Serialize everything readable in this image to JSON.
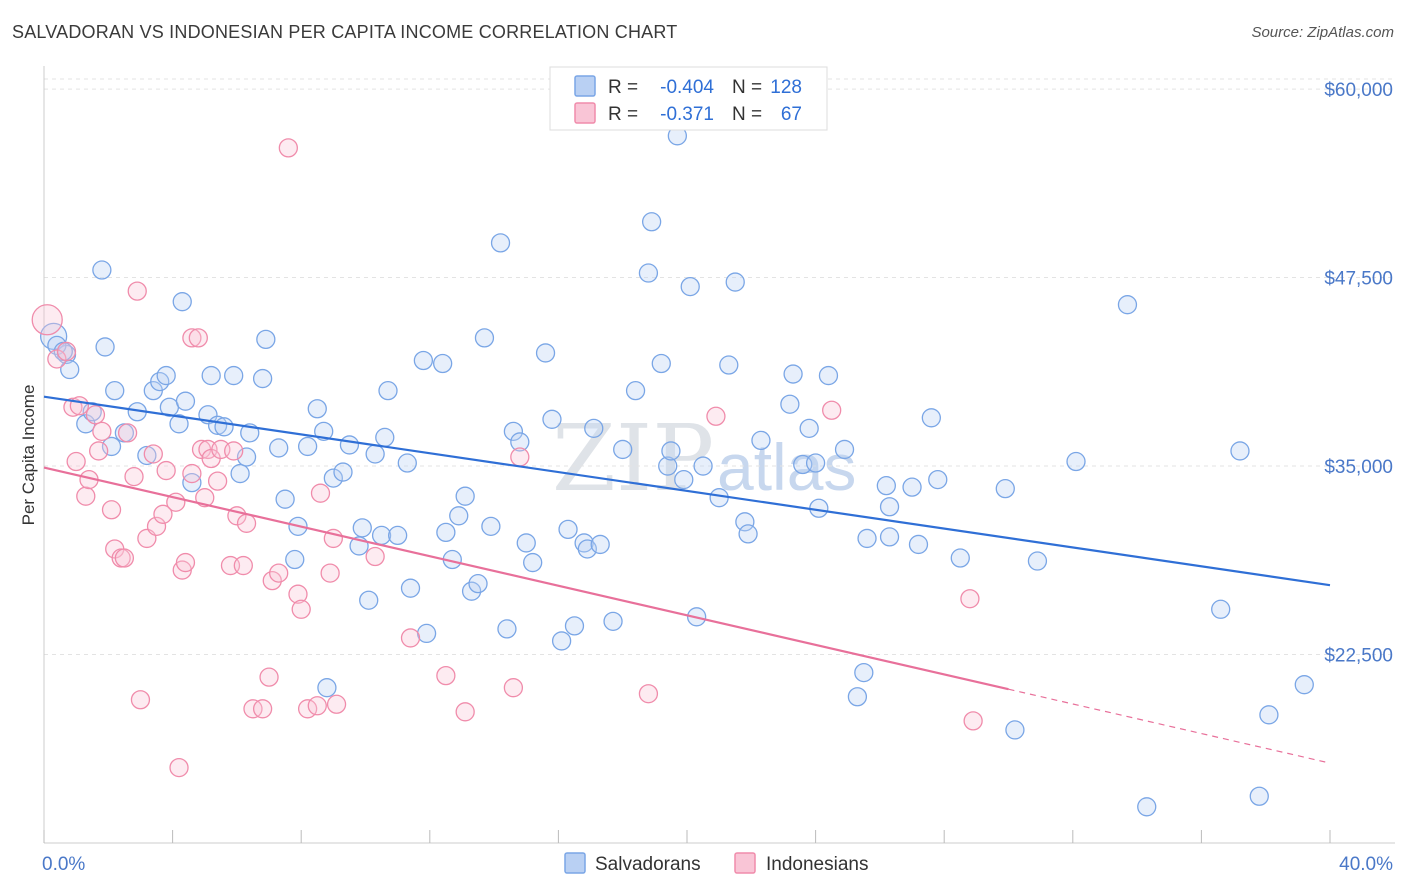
{
  "title": "SALVADORAN VS INDONESIAN PER CAPITA INCOME CORRELATION CHART",
  "source": "Source: ZipAtlas.com",
  "colors": {
    "salvadoran": "#7aa6e6",
    "indonesian": "#f08cab",
    "blue_line": "#2f6fd6",
    "pink_line": "#e8709a",
    "tick_text": "#4a78c8"
  },
  "legend": {
    "rows": [
      {
        "r_label": "R =",
        "r_value": "-0.404",
        "n_label": "N =",
        "n_value": "128"
      },
      {
        "r_label": "R =",
        "r_value": "-0.371",
        "n_label": "N =",
        "n_value": "67"
      }
    ]
  },
  "bottom_legend": [
    "Salvadorans",
    "Indonesians"
  ],
  "watermark": {
    "zip": "ZIP",
    "atlas": "atlas"
  },
  "chart_data": {
    "type": "scatter",
    "title": "SALVADORAN VS INDONESIAN PER CAPITA INCOME CORRELATION CHART",
    "xlabel": "",
    "ylabel": "Per Capita Income",
    "xlim": [
      0,
      40
    ],
    "ylim": [
      10000,
      61000
    ],
    "x_tick_labels": [
      "0.0%",
      "40.0%"
    ],
    "y_ticks": [
      22500,
      35000,
      47500,
      60000
    ],
    "y_tick_labels": [
      "$22,500",
      "$35,000",
      "$47,500",
      "$60,000"
    ],
    "grid": true,
    "series": [
      {
        "name": "Salvadorans",
        "r": -0.404,
        "n": 128,
        "trend": {
          "x": [
            0,
            40
          ],
          "y": [
            39600,
            27100
          ]
        },
        "points": [
          [
            0.3,
            43600
          ],
          [
            0.7,
            42400
          ],
          [
            0.4,
            43000
          ],
          [
            0.8,
            41400
          ],
          [
            0.6,
            42600
          ],
          [
            1.3,
            37800
          ],
          [
            1.5,
            38600
          ],
          [
            1.8,
            48000
          ],
          [
            1.9,
            42900
          ],
          [
            2.2,
            40000
          ],
          [
            2.1,
            36300
          ],
          [
            2.5,
            37200
          ],
          [
            2.9,
            38600
          ],
          [
            3.2,
            35700
          ],
          [
            3.4,
            40000
          ],
          [
            3.6,
            40600
          ],
          [
            3.8,
            41000
          ],
          [
            3.9,
            38900
          ],
          [
            4.2,
            37800
          ],
          [
            4.3,
            45900
          ],
          [
            4.4,
            39300
          ],
          [
            4.6,
            33900
          ],
          [
            5.1,
            38400
          ],
          [
            5.2,
            41000
          ],
          [
            5.4,
            37700
          ],
          [
            5.6,
            37600
          ],
          [
            5.9,
            41000
          ],
          [
            6.1,
            34500
          ],
          [
            6.3,
            35600
          ],
          [
            6.4,
            37200
          ],
          [
            6.8,
            40800
          ],
          [
            6.9,
            43400
          ],
          [
            7.3,
            36200
          ],
          [
            7.5,
            32800
          ],
          [
            7.8,
            28800
          ],
          [
            7.9,
            31000
          ],
          [
            8.2,
            36300
          ],
          [
            8.5,
            38800
          ],
          [
            8.7,
            37300
          ],
          [
            8.8,
            20300
          ],
          [
            9.0,
            34200
          ],
          [
            9.3,
            34600
          ],
          [
            9.5,
            36400
          ],
          [
            9.8,
            29700
          ],
          [
            9.9,
            30900
          ],
          [
            10.1,
            26100
          ],
          [
            10.3,
            35800
          ],
          [
            10.5,
            30400
          ],
          [
            10.6,
            36900
          ],
          [
            10.7,
            40000
          ],
          [
            11.0,
            30400
          ],
          [
            11.3,
            35200
          ],
          [
            11.4,
            26900
          ],
          [
            11.8,
            42000
          ],
          [
            11.9,
            23900
          ],
          [
            12.4,
            41800
          ],
          [
            12.5,
            30600
          ],
          [
            12.7,
            28800
          ],
          [
            12.9,
            31700
          ],
          [
            13.1,
            33000
          ],
          [
            13.3,
            26700
          ],
          [
            13.5,
            27200
          ],
          [
            13.7,
            43500
          ],
          [
            13.9,
            31000
          ],
          [
            14.2,
            49800
          ],
          [
            14.4,
            24200
          ],
          [
            14.6,
            37300
          ],
          [
            14.8,
            36600
          ],
          [
            15.0,
            29900
          ],
          [
            15.2,
            28600
          ],
          [
            15.6,
            42500
          ],
          [
            15.8,
            38100
          ],
          [
            16.1,
            23400
          ],
          [
            16.3,
            30800
          ],
          [
            16.5,
            24400
          ],
          [
            16.8,
            29900
          ],
          [
            16.9,
            29500
          ],
          [
            17.1,
            37500
          ],
          [
            17.3,
            29800
          ],
          [
            17.7,
            24700
          ],
          [
            18.0,
            36100
          ],
          [
            18.4,
            40000
          ],
          [
            18.9,
            51200
          ],
          [
            18.8,
            47800
          ],
          [
            19.2,
            41800
          ],
          [
            19.4,
            35000
          ],
          [
            19.5,
            36000
          ],
          [
            19.7,
            56900
          ],
          [
            19.9,
            34100
          ],
          [
            20.1,
            46900
          ],
          [
            20.3,
            25000
          ],
          [
            20.5,
            35000
          ],
          [
            21.0,
            32900
          ],
          [
            21.3,
            41700
          ],
          [
            21.5,
            47200
          ],
          [
            21.8,
            31300
          ],
          [
            21.9,
            30500
          ],
          [
            22.3,
            36700
          ],
          [
            23.2,
            39100
          ],
          [
            23.3,
            41100
          ],
          [
            23.6,
            35100
          ],
          [
            23.8,
            37500
          ],
          [
            24.0,
            35200
          ],
          [
            24.1,
            32200
          ],
          [
            24.4,
            41000
          ],
          [
            24.9,
            36100
          ],
          [
            25.3,
            19700
          ],
          [
            25.5,
            21300
          ],
          [
            25.6,
            30200
          ],
          [
            26.2,
            33700
          ],
          [
            26.3,
            32300
          ],
          [
            26.3,
            30300
          ],
          [
            27.0,
            33600
          ],
          [
            27.2,
            29800
          ],
          [
            27.6,
            38200
          ],
          [
            27.8,
            34100
          ],
          [
            28.5,
            28900
          ],
          [
            29.9,
            33500
          ],
          [
            30.2,
            17500
          ],
          [
            30.9,
            28700
          ],
          [
            32.1,
            35300
          ],
          [
            33.7,
            45700
          ],
          [
            34.3,
            12400
          ],
          [
            36.6,
            25500
          ],
          [
            37.2,
            36000
          ],
          [
            37.8,
            13100
          ],
          [
            38.1,
            18500
          ],
          [
            39.2,
            20500
          ]
        ]
      },
      {
        "name": "Indonesians",
        "r": -0.371,
        "n": 67,
        "trend": {
          "x": [
            0,
            30
          ],
          "y": [
            34900,
            20200
          ]
        },
        "trend_dashed": {
          "x": [
            30,
            40
          ],
          "y": [
            20200,
            15300
          ]
        },
        "points": [
          [
            0.1,
            44700
          ],
          [
            0.4,
            42100
          ],
          [
            0.7,
            42600
          ],
          [
            0.9,
            38900
          ],
          [
            1.0,
            35300
          ],
          [
            1.1,
            39000
          ],
          [
            1.3,
            33000
          ],
          [
            1.4,
            34100
          ],
          [
            1.6,
            38400
          ],
          [
            1.7,
            36000
          ],
          [
            1.8,
            37300
          ],
          [
            2.1,
            32100
          ],
          [
            2.2,
            29500
          ],
          [
            2.4,
            28900
          ],
          [
            2.5,
            28900
          ],
          [
            2.6,
            37200
          ],
          [
            2.8,
            34300
          ],
          [
            2.9,
            46600
          ],
          [
            3.0,
            19500
          ],
          [
            3.2,
            30200
          ],
          [
            3.4,
            35800
          ],
          [
            3.5,
            31000
          ],
          [
            3.7,
            31800
          ],
          [
            3.8,
            34700
          ],
          [
            4.1,
            32600
          ],
          [
            4.2,
            15000
          ],
          [
            4.3,
            28100
          ],
          [
            4.4,
            28600
          ],
          [
            4.6,
            43500
          ],
          [
            4.6,
            34500
          ],
          [
            4.8,
            43500
          ],
          [
            4.9,
            36100
          ],
          [
            5.0,
            32900
          ],
          [
            5.1,
            36100
          ],
          [
            5.2,
            35500
          ],
          [
            5.4,
            34000
          ],
          [
            5.5,
            36100
          ],
          [
            5.8,
            28400
          ],
          [
            5.9,
            36000
          ],
          [
            6.0,
            31700
          ],
          [
            6.2,
            28400
          ],
          [
            6.3,
            31200
          ],
          [
            6.5,
            18900
          ],
          [
            6.8,
            18900
          ],
          [
            7.0,
            21000
          ],
          [
            7.1,
            27400
          ],
          [
            7.3,
            27900
          ],
          [
            7.6,
            56100
          ],
          [
            7.9,
            26500
          ],
          [
            8.0,
            25500
          ],
          [
            8.2,
            18900
          ],
          [
            8.5,
            19100
          ],
          [
            8.6,
            33200
          ],
          [
            8.9,
            27900
          ],
          [
            9.0,
            30200
          ],
          [
            9.1,
            19200
          ],
          [
            10.3,
            29000
          ],
          [
            11.4,
            23600
          ],
          [
            12.5,
            21100
          ],
          [
            13.1,
            18700
          ],
          [
            14.6,
            20300
          ],
          [
            14.8,
            35600
          ],
          [
            18.8,
            19900
          ],
          [
            20.9,
            38300
          ],
          [
            24.5,
            38700
          ],
          [
            28.8,
            26200
          ],
          [
            28.9,
            18100
          ]
        ]
      }
    ]
  }
}
